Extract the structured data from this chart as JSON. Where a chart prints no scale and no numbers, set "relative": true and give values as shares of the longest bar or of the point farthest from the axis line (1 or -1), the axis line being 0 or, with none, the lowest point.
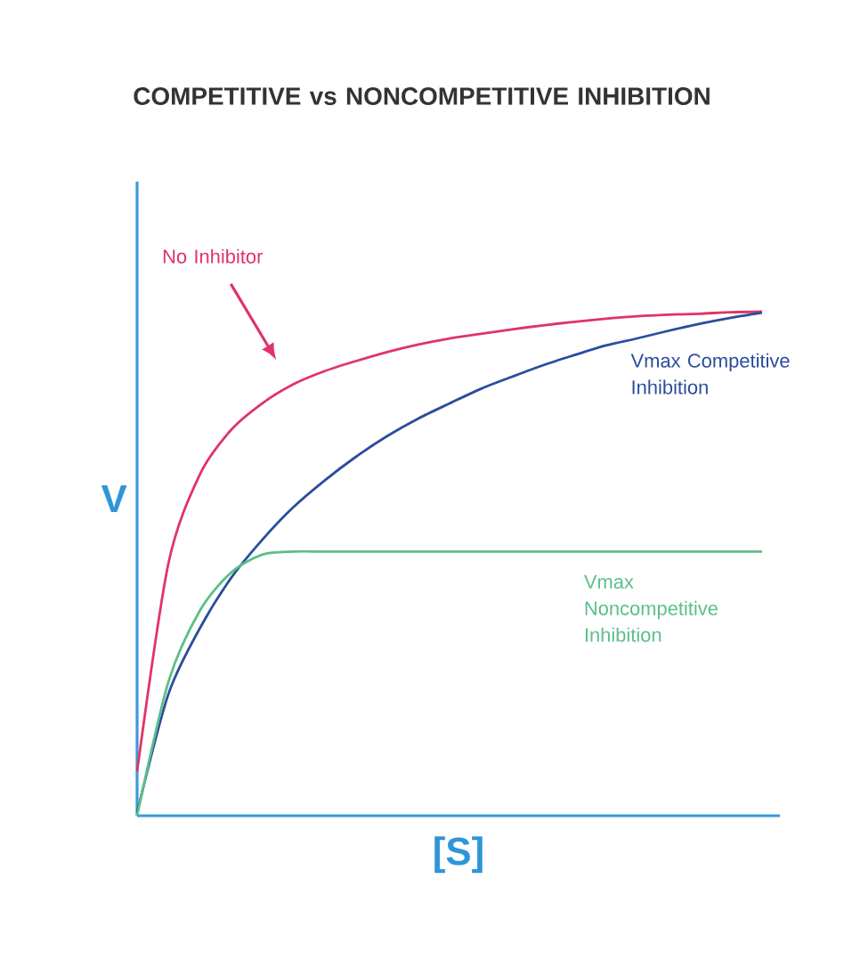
{
  "chart_data": {
    "type": "line",
    "title": "COMPETITIVE vs NONCOMPETITIVE INHIBITION",
    "xlabel": "[S]",
    "ylabel": "V",
    "relative": true,
    "marker": "none",
    "line_style": "solid",
    "categories": [
      null,
      null,
      null,
      null,
      null,
      null,
      null,
      null,
      null,
      null,
      null,
      null,
      null,
      null,
      null,
      null,
      null,
      null,
      null,
      null,
      null
    ],
    "series": [
      {
        "name": "No Inhibitor",
        "color": "#e0336a",
        "values": [
          0.088,
          0.5,
          0.676,
          0.765,
          0.818,
          0.856,
          0.882,
          0.902,
          0.92,
          0.935,
          0.947,
          0.956,
          0.965,
          0.973,
          0.98,
          0.986,
          0.991,
          0.994,
          0.996,
          0.999,
          1
        ]
      },
      {
        "name": "Vmax Competitive Inhibition",
        "color": "#2a4d9c",
        "values": [
          0.006,
          0.241,
          0.371,
          0.471,
          0.547,
          0.612,
          0.665,
          0.712,
          0.753,
          0.788,
          0.818,
          0.847,
          0.871,
          0.894,
          0.914,
          0.933,
          0.947,
          0.962,
          0.976,
          0.988,
          0.998
        ]
      },
      {
        "name": "Vmax Noncompetitive Inhibition",
        "color": "#5bbf8a",
        "values": [
          0,
          0.265,
          0.406,
          0.482,
          0.518,
          0.524,
          0.524,
          0.524,
          0.524,
          0.524,
          0.524,
          0.524,
          0.524,
          0.524,
          0.524,
          0.524,
          0.524,
          0.524,
          0.524,
          0.524,
          0.524
        ]
      }
    ]
  }
}
